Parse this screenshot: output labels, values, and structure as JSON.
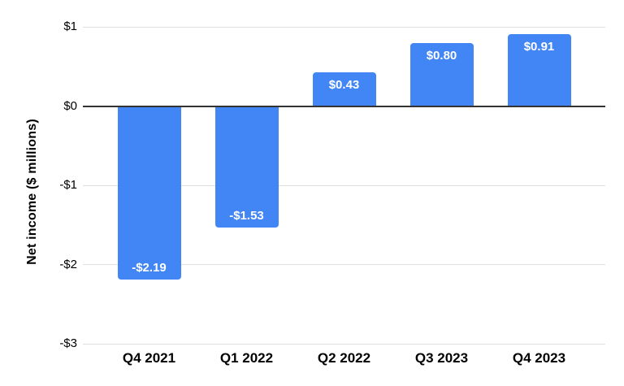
{
  "chart_data": {
    "type": "bar",
    "title": "",
    "ylabel": "Net income ($ millions)",
    "xlabel": "",
    "categories": [
      "Q4 2021",
      "Q1 2022",
      "Q2 2022",
      "Q3 2023",
      "Q4 2023"
    ],
    "values": [
      -2.19,
      -1.53,
      0.43,
      0.8,
      0.91
    ],
    "bar_labels": [
      "-$2.19",
      "-$1.53",
      "$0.43",
      "$0.80",
      "$0.91"
    ],
    "yticks": [
      1,
      0,
      -1,
      -2,
      -3
    ],
    "ytick_labels": [
      "$1",
      "$0",
      "-$1",
      "-$2",
      "-$3"
    ],
    "ylim": [
      -3,
      1
    ],
    "grid": true,
    "legend_position": "none",
    "colors": {
      "bar": "#4285f4",
      "bar_label_text": "#ffffff",
      "gridline": "#e0e0e0",
      "zero_axis_line": "#333333",
      "tick_text": "#000000",
      "category_text": "#000000",
      "axis_title_text": "#000000",
      "background": "#ffffff"
    }
  }
}
